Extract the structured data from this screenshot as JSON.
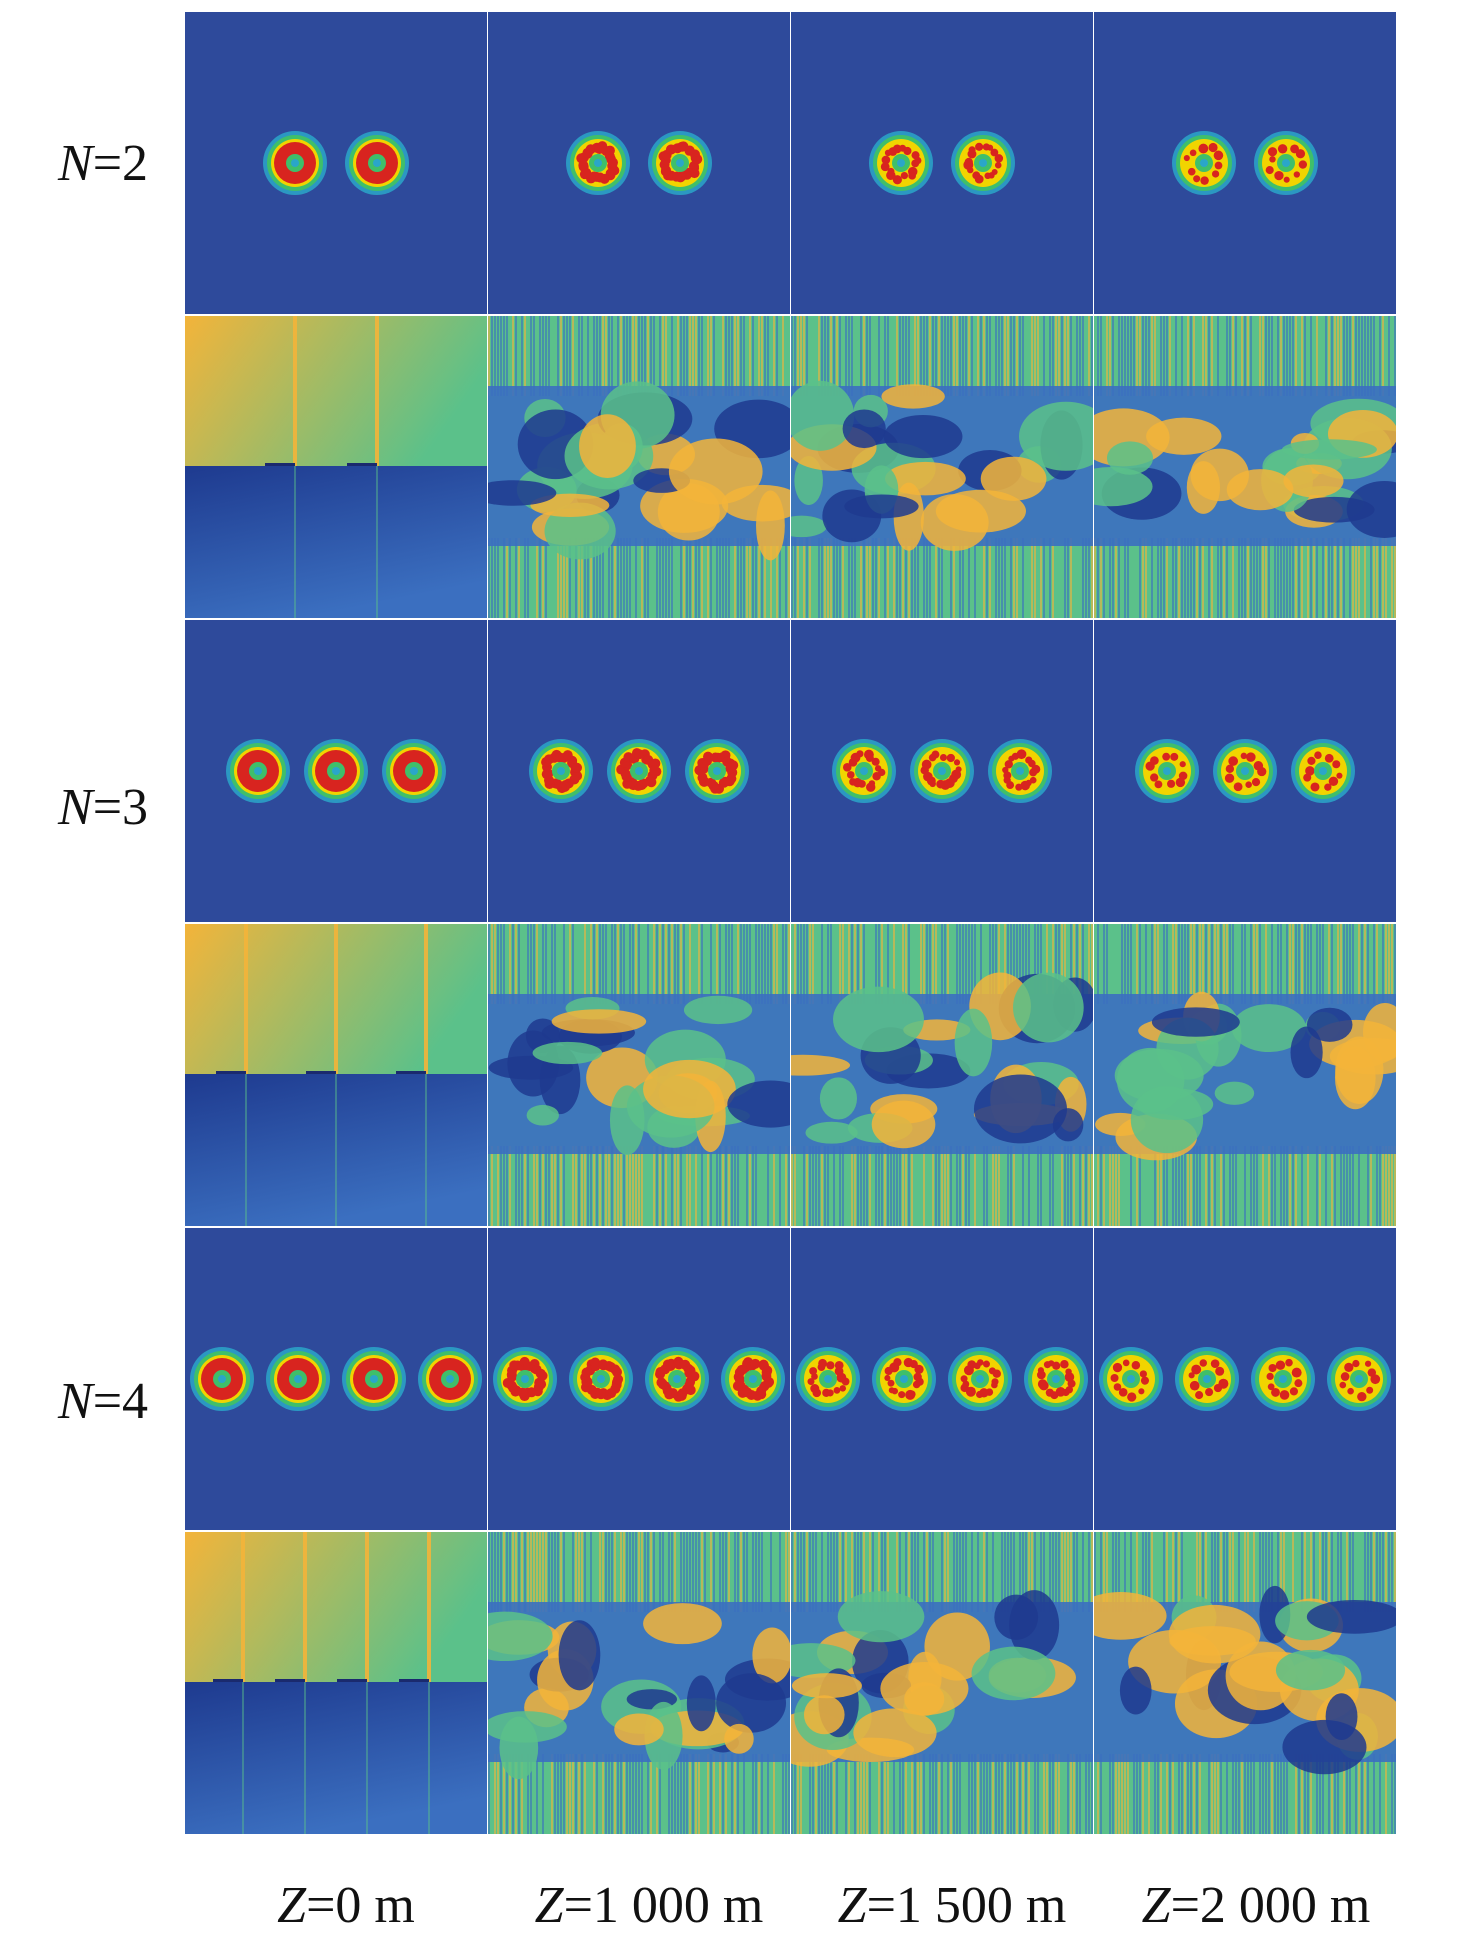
{
  "figure": {
    "rows": [
      {
        "label_var": "N",
        "label_val": "=2",
        "n_beams": 2
      },
      {
        "label_var": "N",
        "label_val": "=3",
        "n_beams": 3
      },
      {
        "label_var": "N",
        "label_val": "=4",
        "n_beams": 4
      }
    ],
    "columns": [
      {
        "label_var": "Z",
        "label_val": "=0 m"
      },
      {
        "label_var": "Z",
        "label_val": "=1 000 m"
      },
      {
        "label_var": "Z",
        "label_val": "=1 500 m"
      },
      {
        "label_var": "Z",
        "label_val": "=2 000 m"
      }
    ],
    "panel_types": [
      "intensity",
      "phase"
    ],
    "colors": {
      "background_blue": "#2e4a9b",
      "ring_red": "#d8241f",
      "ring_yellow": "#f1d400",
      "ring_green": "#3fbf6a",
      "ring_cyan": "#2aa6c9",
      "phase_yellow": "#f3b43a",
      "phase_green": "#5bc18a",
      "phase_blue": "#3b6fc0",
      "phase_dark": "#1e3a8f"
    }
  }
}
